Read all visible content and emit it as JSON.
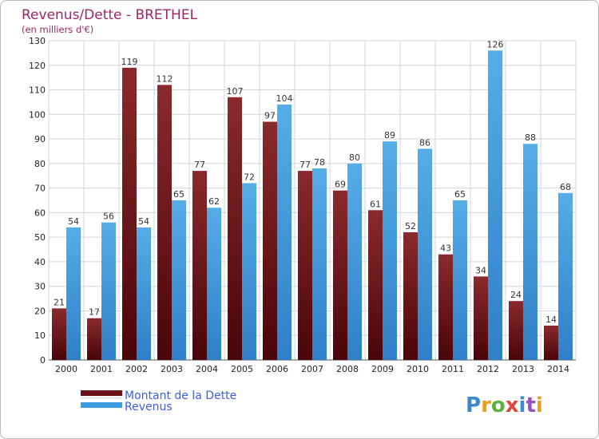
{
  "chart_data": {
    "type": "bar",
    "title": "Revenus/Dette - BRETHEL",
    "subtitle": "(en milliers d'€)",
    "categories": [
      "2000",
      "2001",
      "2002",
      "2003",
      "2004",
      "2005",
      "2006",
      "2007",
      "2008",
      "2009",
      "2010",
      "2011",
      "2012",
      "2013",
      "2014"
    ],
    "series": [
      {
        "name": "Montant de la Dette",
        "color": "#7a1a1f",
        "values": [
          21,
          17,
          119,
          112,
          77,
          107,
          97,
          77,
          69,
          61,
          52,
          43,
          34,
          24,
          14
        ]
      },
      {
        "name": "Revenus",
        "color": "#3e9be0",
        "values": [
          54,
          56,
          54,
          65,
          62,
          72,
          104,
          78,
          80,
          89,
          86,
          65,
          126,
          88,
          68
        ]
      }
    ],
    "ylim": [
      0,
      130
    ],
    "yticks": [
      0,
      10,
      20,
      30,
      40,
      50,
      60,
      70,
      80,
      90,
      100,
      110,
      120,
      130
    ],
    "grid": true,
    "legend_position": "bottom-left"
  },
  "logo": {
    "text": "Proxiti"
  }
}
